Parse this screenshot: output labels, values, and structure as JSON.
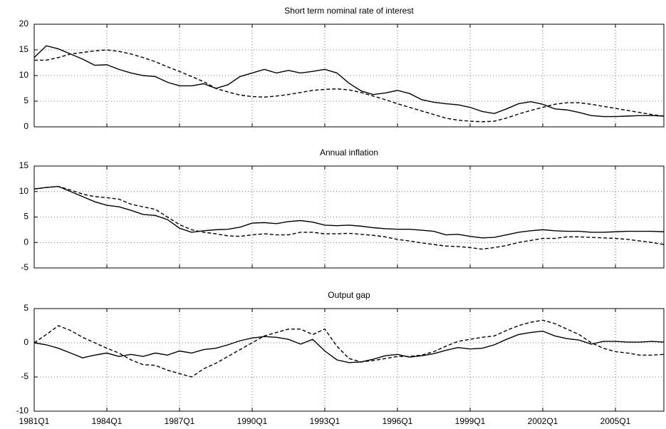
{
  "chart_data": [
    {
      "type": "line",
      "title": "Short term nominal rate of interest",
      "x": [
        1981,
        1981.5,
        1982,
        1982.5,
        1983,
        1983.5,
        1984,
        1984.5,
        1985,
        1985.5,
        1986,
        1986.5,
        1987,
        1987.5,
        1988,
        1988.5,
        1989,
        1989.5,
        1990,
        1990.5,
        1991,
        1991.5,
        1992,
        1992.5,
        1993,
        1993.5,
        1994,
        1994.5,
        1995,
        1995.5,
        1996,
        1996.5,
        1997,
        1997.5,
        1998,
        1998.5,
        1999,
        1999.5,
        2000,
        2000.5,
        2001,
        2001.5,
        2002,
        2002.5,
        2003,
        2003.5,
        2004,
        2004.5,
        2005,
        2005.5,
        2006,
        2006.5,
        2007
      ],
      "series": [
        {
          "color": "#000000",
          "style": "solid",
          "values": [
            13.5,
            15.8,
            15.2,
            14.2,
            13.2,
            12,
            12.1,
            11.2,
            10.5,
            10,
            9.8,
            8.7,
            8,
            8,
            8.4,
            7.5,
            8.2,
            9.8,
            10.5,
            11.2,
            10.5,
            11,
            10.5,
            10.8,
            11.2,
            10.5,
            8.5,
            7,
            6.3,
            6.6,
            7.1,
            6.5,
            5.3,
            4.8,
            4.5,
            4.3,
            3.8,
            3,
            2.6,
            3.5,
            4.5,
            4.9,
            4.4,
            3.5,
            3.3,
            2.8,
            2.2,
            2,
            2,
            2.1,
            2.2,
            2.2,
            2.1
          ]
        },
        {
          "color": "#000000",
          "style": "dashed",
          "values": [
            13,
            13,
            13.5,
            14.2,
            14.5,
            14.8,
            15,
            14.7,
            14.2,
            13.5,
            12.7,
            11.7,
            10.8,
            9.8,
            8.8,
            7.5,
            6.8,
            6.2,
            5.9,
            5.8,
            6,
            6.3,
            6.7,
            7.1,
            7.3,
            7.4,
            7.2,
            6.7,
            6,
            5.3,
            4.5,
            3.8,
            3.1,
            2.4,
            1.7,
            1.3,
            1.1,
            1.0,
            1.1,
            1.7,
            2.5,
            3.2,
            3.8,
            4.4,
            4.7,
            4.7,
            4.4,
            4.0,
            3.6,
            3.2,
            2.8,
            2.4,
            2.1
          ]
        }
      ],
      "xlim": [
        1981,
        2007
      ],
      "xticks": [
        1981,
        1984,
        1987,
        1990,
        1993,
        1996,
        1999,
        2002,
        2005
      ],
      "ylim": [
        0,
        20
      ],
      "yticks": [
        0,
        5,
        10,
        15,
        20
      ],
      "grid": true
    },
    {
      "type": "line",
      "title": "Annual inflation",
      "x": [
        1981,
        1981.5,
        1982,
        1982.5,
        1983,
        1983.5,
        1984,
        1984.5,
        1985,
        1985.5,
        1986,
        1986.5,
        1987,
        1987.5,
        1988,
        1988.5,
        1989,
        1989.5,
        1990,
        1990.5,
        1991,
        1991.5,
        1992,
        1992.5,
        1993,
        1993.5,
        1994,
        1994.5,
        1995,
        1995.5,
        1996,
        1996.5,
        1997,
        1997.5,
        1998,
        1998.5,
        1999,
        1999.5,
        2000,
        2000.5,
        2001,
        2001.5,
        2002,
        2002.5,
        2003,
        2003.5,
        2004,
        2004.5,
        2005,
        2005.5,
        2006,
        2006.5,
        2007
      ],
      "series": [
        {
          "color": "#000000",
          "style": "solid",
          "values": [
            10.5,
            10.8,
            11,
            10,
            9,
            8,
            7.3,
            7,
            6.3,
            5.5,
            5.3,
            4.5,
            2.8,
            2,
            2.3,
            2.5,
            2.6,
            3,
            3.8,
            3.9,
            3.7,
            4.1,
            4.3,
            4,
            3.4,
            3.3,
            3.4,
            3.2,
            2.9,
            2.7,
            2.6,
            2.6,
            2.4,
            2.2,
            1.5,
            1.6,
            1.2,
            0.9,
            1.0,
            1.5,
            2.0,
            2.3,
            2.5,
            2.3,
            2.2,
            2.2,
            2.0,
            2.0,
            2.1,
            2.2,
            2.2,
            2.2,
            2.1
          ]
        },
        {
          "color": "#000000",
          "style": "dashed",
          "values": [
            10.5,
            10.8,
            11,
            10.3,
            9.5,
            9,
            8.8,
            8.5,
            7.5,
            7,
            6.5,
            5,
            3.5,
            2.5,
            2,
            1.7,
            1.3,
            1.2,
            1.5,
            1.7,
            1.5,
            1.5,
            2,
            2,
            1.7,
            1.7,
            1.8,
            1.6,
            1.4,
            1.1,
            0.6,
            0.3,
            -0.1,
            -0.4,
            -0.7,
            -0.8,
            -1.0,
            -1.3,
            -1.0,
            -0.6,
            0,
            0.4,
            0.8,
            0.8,
            1.1,
            1.1,
            1.0,
            0.9,
            0.8,
            0.6,
            0.3,
            0,
            -0.4
          ]
        }
      ],
      "xlim": [
        1981,
        2007
      ],
      "xticks": [
        1981,
        1984,
        1987,
        1990,
        1993,
        1996,
        1999,
        2002,
        2005
      ],
      "ylim": [
        -5,
        15
      ],
      "yticks": [
        -5,
        0,
        5,
        10,
        15
      ],
      "grid": true
    },
    {
      "type": "line",
      "title": "Output gap",
      "x": [
        1981,
        1981.5,
        1982,
        1982.5,
        1983,
        1983.5,
        1984,
        1984.5,
        1985,
        1985.5,
        1986,
        1986.5,
        1987,
        1987.5,
        1988,
        1988.5,
        1989,
        1989.5,
        1990,
        1990.5,
        1991,
        1991.5,
        1992,
        1992.5,
        1993,
        1993.5,
        1994,
        1994.5,
        1995,
        1995.5,
        1996,
        1996.5,
        1997,
        1997.5,
        1998,
        1998.5,
        1999,
        1999.5,
        2000,
        2000.5,
        2001,
        2001.5,
        2002,
        2002.5,
        2003,
        2003.5,
        2004,
        2004.5,
        2005,
        2005.5,
        2006,
        2006.5,
        2007
      ],
      "series": [
        {
          "color": "#000000",
          "style": "solid",
          "values": [
            0,
            -0.3,
            -0.8,
            -1.5,
            -2.2,
            -1.8,
            -1.5,
            -2,
            -1.7,
            -2,
            -1.5,
            -1.8,
            -1.2,
            -1.5,
            -1,
            -0.8,
            -0.3,
            0.3,
            0.7,
            0.9,
            0.8,
            0.5,
            -0.2,
            0.5,
            -1.2,
            -2.5,
            -2.9,
            -2.8,
            -2.4,
            -1.9,
            -1.7,
            -2.1,
            -1.9,
            -1.6,
            -1.1,
            -0.7,
            -0.9,
            -0.8,
            -0.3,
            0.5,
            1.2,
            1.5,
            1.7,
            1.0,
            0.6,
            0.4,
            -0.2,
            0.2,
            0.2,
            0.1,
            0.1,
            0.2,
            0.1
          ]
        },
        {
          "color": "#000000",
          "style": "dashed",
          "values": [
            0,
            1.2,
            2.5,
            1.8,
            0.8,
            0,
            -0.8,
            -1.5,
            -2.5,
            -3.2,
            -3.3,
            -4,
            -4.5,
            -5,
            -3.8,
            -3,
            -2,
            -1,
            0,
            1,
            1.5,
            2,
            2,
            1.2,
            2,
            -0.5,
            -2.3,
            -2.8,
            -2.6,
            -2.3,
            -2,
            -2,
            -1.8,
            -1.3,
            -0.5,
            0.2,
            0.5,
            0.8,
            1,
            1.8,
            2.5,
            3,
            3.3,
            2.8,
            2,
            1.2,
            0,
            -0.8,
            -1.3,
            -1.5,
            -1.8,
            -1.8,
            -1.7
          ]
        }
      ],
      "xlim": [
        1981,
        2007
      ],
      "xticks": [
        {
          "value": 1981,
          "label": "1981Q1"
        },
        {
          "value": 1984,
          "label": "1984Q1"
        },
        {
          "value": 1987,
          "label": "1987Q1"
        },
        {
          "value": 1990,
          "label": "1990Q1"
        },
        {
          "value": 1993,
          "label": "1993Q1"
        },
        {
          "value": 1996,
          "label": "1996Q1"
        },
        {
          "value": 1999,
          "label": "1999Q1"
        },
        {
          "value": 2002,
          "label": "2002Q1"
        },
        {
          "value": 2005,
          "label": "2005Q1"
        }
      ],
      "ylim": [
        -10,
        5
      ],
      "yticks": [
        -10,
        -5,
        0,
        5
      ],
      "grid": true
    }
  ]
}
